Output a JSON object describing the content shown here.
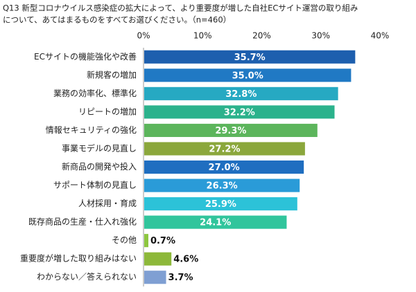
{
  "chart_data": {
    "type": "bar",
    "orientation": "horizontal",
    "title": [
      "Q13 新型コロナウイルス感染症の拡大によって、より重要度が増した自社ECサイト運営の取り組み",
      "について、あてはまるものをすべてお選びください。（n=460）"
    ],
    "categories": [
      "ECサイトの機能強化や改善",
      "新規客の増加",
      "業務の効率化、標準化",
      "リピートの増加",
      "情報セキュリティの強化",
      "事業モデルの見直し",
      "新商品の開発や投入",
      "サポート体制の見直し",
      "人材採用・育成",
      "既存商品の生産・仕入れ強化",
      "その他",
      "重要度が増した取り組みはない",
      "わからない／答えられない"
    ],
    "values": [
      35.7,
      35.0,
      32.8,
      32.2,
      29.3,
      27.2,
      27.0,
      26.3,
      25.9,
      24.1,
      0.7,
      4.6,
      3.7
    ],
    "value_labels": [
      "35.7%",
      "35.0%",
      "32.8%",
      "32.2%",
      "29.3%",
      "27.2%",
      "27.0%",
      "26.3%",
      "25.9%",
      "24.1%",
      "0.7%",
      "4.6%",
      "3.7%"
    ],
    "colors": [
      "#1d5fae",
      "#2079c4",
      "#26a9c2",
      "#2bb28c",
      "#5cb55c",
      "#8ba73c",
      "#1f6ec0",
      "#2a9bd8",
      "#2cc2d8",
      "#31c59c",
      "#8dc63f",
      "#8db83a",
      "#7f9fd3"
    ],
    "xlim": [
      0,
      40
    ],
    "xticks": [
      {
        "value": 0,
        "label": "0%"
      },
      {
        "value": 10,
        "label": "10%"
      },
      {
        "value": 20,
        "label": "20%"
      },
      {
        "value": 30,
        "label": "30%"
      },
      {
        "value": 40,
        "label": "40%"
      }
    ]
  }
}
